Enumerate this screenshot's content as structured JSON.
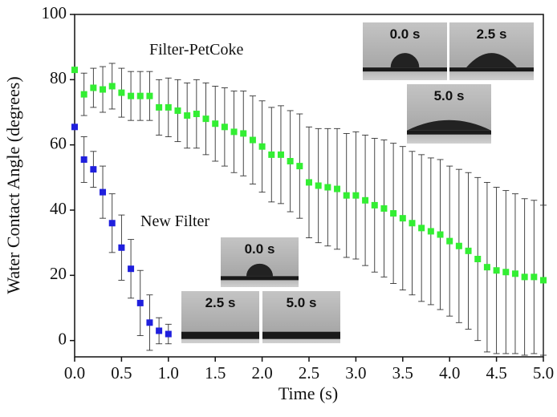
{
  "chart_data": {
    "type": "scatter",
    "x_label": "Time (s)",
    "y_label": "Water Contact Angle (degrees)",
    "xlim": [
      0,
      5
    ],
    "ylim": [
      -5,
      100
    ],
    "xticks": [
      {
        "value": 0,
        "label": "0.0"
      },
      0.5,
      {
        "value": 1,
        "label": "1.0"
      },
      1.5,
      {
        "value": 2,
        "label": "2.0"
      },
      2.5,
      {
        "value": 3,
        "label": "3.0"
      },
      3.5,
      {
        "value": 4,
        "label": "4.0"
      },
      4.5,
      {
        "value": 5,
        "label": "5.0"
      }
    ],
    "yticks": [
      0,
      20,
      40,
      60,
      80,
      100
    ],
    "series": [
      {
        "name": "Filter-PetCoke",
        "color": "#33ee33",
        "x": [
          0,
          0.1,
          0.2,
          0.3,
          0.4,
          0.5,
          0.6,
          0.7,
          0.8,
          0.9,
          1.0,
          1.1,
          1.2,
          1.3,
          1.4,
          1.5,
          1.6,
          1.7,
          1.8,
          1.9,
          2.0,
          2.1,
          2.2,
          2.3,
          2.4,
          2.5,
          2.6,
          2.7,
          2.8,
          2.9,
          3.0,
          3.1,
          3.2,
          3.3,
          3.4,
          3.5,
          3.6,
          3.7,
          3.8,
          3.9,
          4.0,
          4.1,
          4.2,
          4.3,
          4.4,
          4.5,
          4.6,
          4.7,
          4.8,
          4.9,
          5.0
        ],
        "values": [
          83,
          75.5,
          77.5,
          77,
          78,
          76,
          75,
          75,
          75,
          71.5,
          71.5,
          70.5,
          69,
          69.5,
          68,
          66.5,
          65.5,
          64,
          63.5,
          61.5,
          59.5,
          57,
          57,
          55,
          53.5,
          48.5,
          47.5,
          47,
          46.5,
          44.5,
          44.5,
          43,
          41.5,
          40.5,
          39,
          37.5,
          36,
          34.5,
          33.5,
          32.5,
          30.5,
          29,
          27.5,
          25,
          22.5,
          21.5,
          21,
          20.5,
          19.5,
          19.5,
          18.5
        ],
        "errors": [
          0,
          6.5,
          6,
          7,
          7,
          7.5,
          7.5,
          7.5,
          7.5,
          8.5,
          9,
          9.5,
          10,
          10.5,
          11,
          11.5,
          12,
          12.5,
          13,
          13.5,
          14,
          14.5,
          15,
          15.5,
          16,
          17,
          17.5,
          18,
          18.5,
          19,
          19.5,
          20,
          20.5,
          21,
          21.5,
          22,
          22,
          22.5,
          22.5,
          23,
          23,
          23.5,
          24,
          25,
          26,
          25.5,
          25,
          24.5,
          24,
          23.5,
          23
        ]
      },
      {
        "name": "New Filter",
        "color": "#1f1fdd",
        "x": [
          0,
          0.1,
          0.2,
          0.3,
          0.4,
          0.5,
          0.6,
          0.7,
          0.8,
          0.9,
          1.0
        ],
        "values": [
          65.5,
          55.5,
          52.5,
          45.5,
          36,
          28.5,
          22,
          11.5,
          5.5,
          3,
          2
        ],
        "errors": [
          0,
          7,
          5.5,
          8,
          9,
          10,
          9,
          10,
          8.5,
          4,
          3
        ]
      }
    ],
    "annotations": [
      "0.0 s",
      "2.5 s",
      "5.0 s",
      "0.0 s",
      "2.5 s",
      "5.0 s"
    ]
  }
}
